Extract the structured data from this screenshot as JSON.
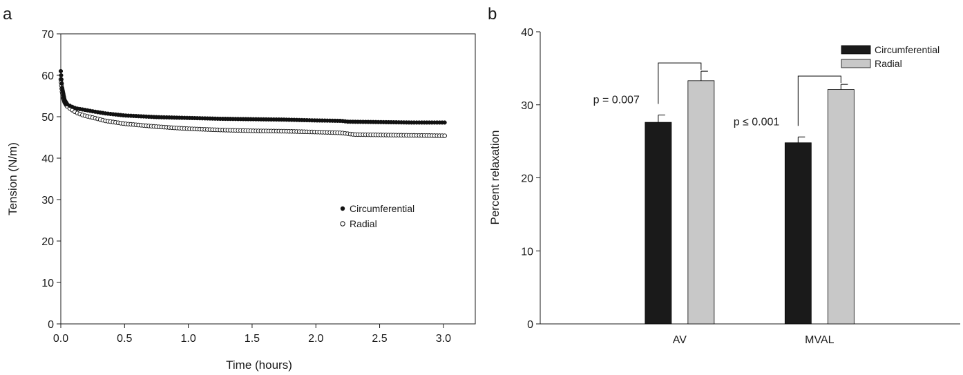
{
  "chart_data": [
    {
      "panel": "a",
      "type": "scatter",
      "xlabel": "Time (hours)",
      "ylabel": "Tension (N/m)",
      "xlim": [
        0,
        3.25
      ],
      "ylim": [
        0,
        70
      ],
      "xticks": [
        "0.0",
        "0.5",
        "1.0",
        "1.5",
        "2.0",
        "2.5",
        "3.0"
      ],
      "yticks": [
        "0",
        "10",
        "20",
        "30",
        "40",
        "50",
        "60",
        "70"
      ],
      "legend_position": "center-right",
      "series": [
        {
          "name": "Circumferential",
          "marker": "filled-circle",
          "color": "#111111",
          "x": [
            0.0,
            0.005,
            0.01,
            0.02,
            0.03,
            0.05,
            0.08,
            0.12,
            0.18,
            0.25,
            0.35,
            0.5,
            0.75,
            1.0,
            1.25,
            1.5,
            1.75,
            2.0,
            2.2,
            2.25,
            2.5,
            2.75,
            3.02
          ],
          "y": [
            61.0,
            59.0,
            57.0,
            55.5,
            54.0,
            53.0,
            52.5,
            52.0,
            51.7,
            51.3,
            50.8,
            50.3,
            49.9,
            49.7,
            49.5,
            49.4,
            49.3,
            49.1,
            49.0,
            48.8,
            48.7,
            48.6,
            48.6
          ]
        },
        {
          "name": "Radial",
          "marker": "open-circle",
          "color": "#111111",
          "x": [
            0.0,
            0.005,
            0.01,
            0.02,
            0.03,
            0.05,
            0.08,
            0.12,
            0.18,
            0.25,
            0.35,
            0.5,
            0.75,
            1.0,
            1.25,
            1.5,
            1.75,
            2.0,
            2.2,
            2.3,
            2.5,
            2.75,
            3.02
          ],
          "y": [
            59.0,
            57.5,
            56.0,
            54.5,
            53.5,
            52.5,
            51.8,
            51.0,
            50.3,
            49.8,
            49.0,
            48.3,
            47.6,
            47.1,
            46.8,
            46.6,
            46.5,
            46.3,
            46.1,
            45.7,
            45.6,
            45.5,
            45.4
          ]
        }
      ]
    },
    {
      "panel": "b",
      "type": "bar",
      "xlabel": "",
      "ylabel": "Percent relaxation",
      "ylim": [
        0,
        40
      ],
      "yticks": [
        "0",
        "10",
        "20",
        "30",
        "40"
      ],
      "categories": [
        "AV",
        "MVAL"
      ],
      "legend_position": "top-right",
      "series": [
        {
          "name": "Circumferential",
          "color": "#1a1a1a",
          "values": [
            27.6,
            24.8
          ],
          "errors": [
            1.0,
            0.8
          ]
        },
        {
          "name": "Radial",
          "color": "#c8c8c8",
          "values": [
            33.3,
            32.1
          ],
          "errors": [
            1.3,
            0.7
          ]
        }
      ],
      "annotations": [
        {
          "text": "p = 0.007",
          "category": "AV"
        },
        {
          "text": "p ≤ 0.001",
          "category": "MVAL"
        }
      ]
    }
  ]
}
